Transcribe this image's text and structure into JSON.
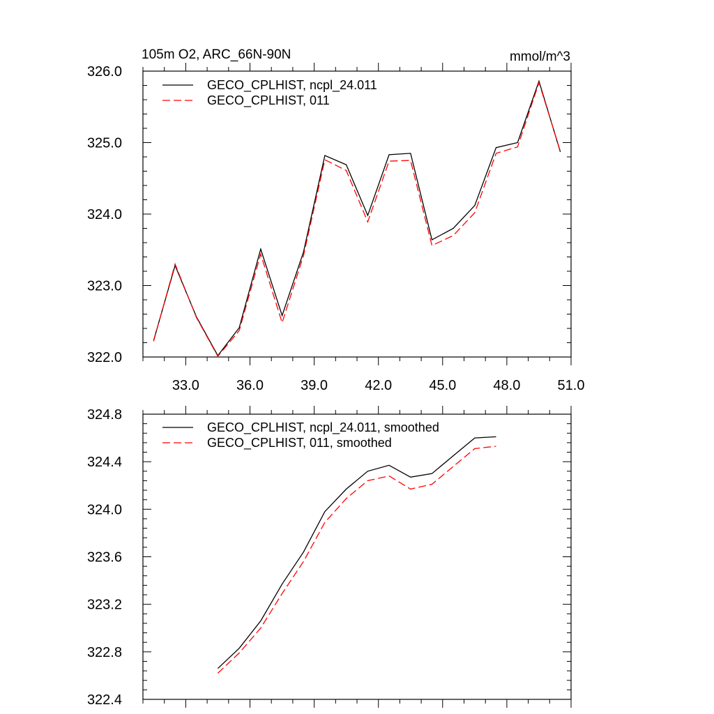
{
  "title_left": "105m O2, ARC_66N-90N",
  "title_right": "mmol/m^3",
  "colors": {
    "series_a": "#000000",
    "series_b": "#ff0000"
  },
  "chart_data": [
    {
      "type": "line",
      "xlim": [
        31,
        51
      ],
      "ylim": [
        322.0,
        326.0
      ],
      "x_ticks": [
        33,
        36,
        39,
        42,
        45,
        48,
        51
      ],
      "x_tick_labels": [
        "33.0",
        "36.0",
        "39.0",
        "42.0",
        "45.0",
        "48.0",
        "51.0"
      ],
      "y_ticks": [
        322,
        323,
        324,
        325,
        326
      ],
      "y_tick_labels": [
        "322.0",
        "323.0",
        "324.0",
        "325.0",
        "326.0"
      ],
      "legend_position": "top-left",
      "x": [
        31.5,
        32.5,
        33.5,
        34.5,
        35.5,
        36.5,
        37.5,
        38.5,
        39.5,
        40.5,
        41.5,
        42.5,
        43.5,
        44.5,
        45.5,
        46.5,
        47.5,
        48.5,
        49.5,
        50.5
      ],
      "series": [
        {
          "name": "GECO_CPLHIST, ncpl_24.011",
          "style": "solid",
          "values": [
            322.23,
            323.28,
            322.56,
            322.02,
            322.41,
            323.51,
            322.58,
            323.47,
            324.82,
            324.69,
            323.98,
            324.83,
            324.85,
            323.64,
            323.8,
            324.12,
            324.93,
            325.0,
            325.86,
            324.87
          ]
        },
        {
          "name": "GECO_CPLHIST, 011",
          "style": "dashed",
          "values": [
            322.22,
            323.3,
            322.55,
            322.01,
            322.37,
            323.44,
            322.48,
            323.42,
            324.76,
            324.61,
            323.89,
            324.74,
            324.75,
            323.56,
            323.7,
            324.02,
            324.85,
            324.94,
            325.84,
            324.88
          ]
        }
      ]
    },
    {
      "type": "line",
      "xlim": [
        31,
        51
      ],
      "ylim": [
        322.4,
        324.8
      ],
      "y_ticks": [
        322.4,
        322.8,
        323.2,
        323.6,
        324.0,
        324.4,
        324.8
      ],
      "y_tick_labels": [
        "322.4",
        "322.8",
        "323.2",
        "323.6",
        "324.0",
        "324.4",
        "324.8"
      ],
      "legend_position": "top-left",
      "x": [
        34.5,
        35.5,
        36.5,
        37.5,
        38.5,
        39.5,
        40.5,
        41.5,
        42.5,
        43.5,
        44.5,
        45.5,
        46.5,
        47.5
      ],
      "series": [
        {
          "name": "GECO_CPLHIST, ncpl_24.011, smoothed",
          "style": "solid",
          "values": [
            322.66,
            322.83,
            323.06,
            323.37,
            323.64,
            323.98,
            324.17,
            324.32,
            324.37,
            324.27,
            324.3,
            324.45,
            324.6,
            324.61
          ]
        },
        {
          "name": "GECO_CPLHIST, 011, smoothed",
          "style": "dashed",
          "values": [
            322.62,
            322.79,
            323.0,
            323.29,
            323.56,
            323.89,
            324.09,
            324.24,
            324.28,
            324.17,
            324.21,
            324.36,
            324.51,
            324.53
          ]
        }
      ]
    }
  ]
}
